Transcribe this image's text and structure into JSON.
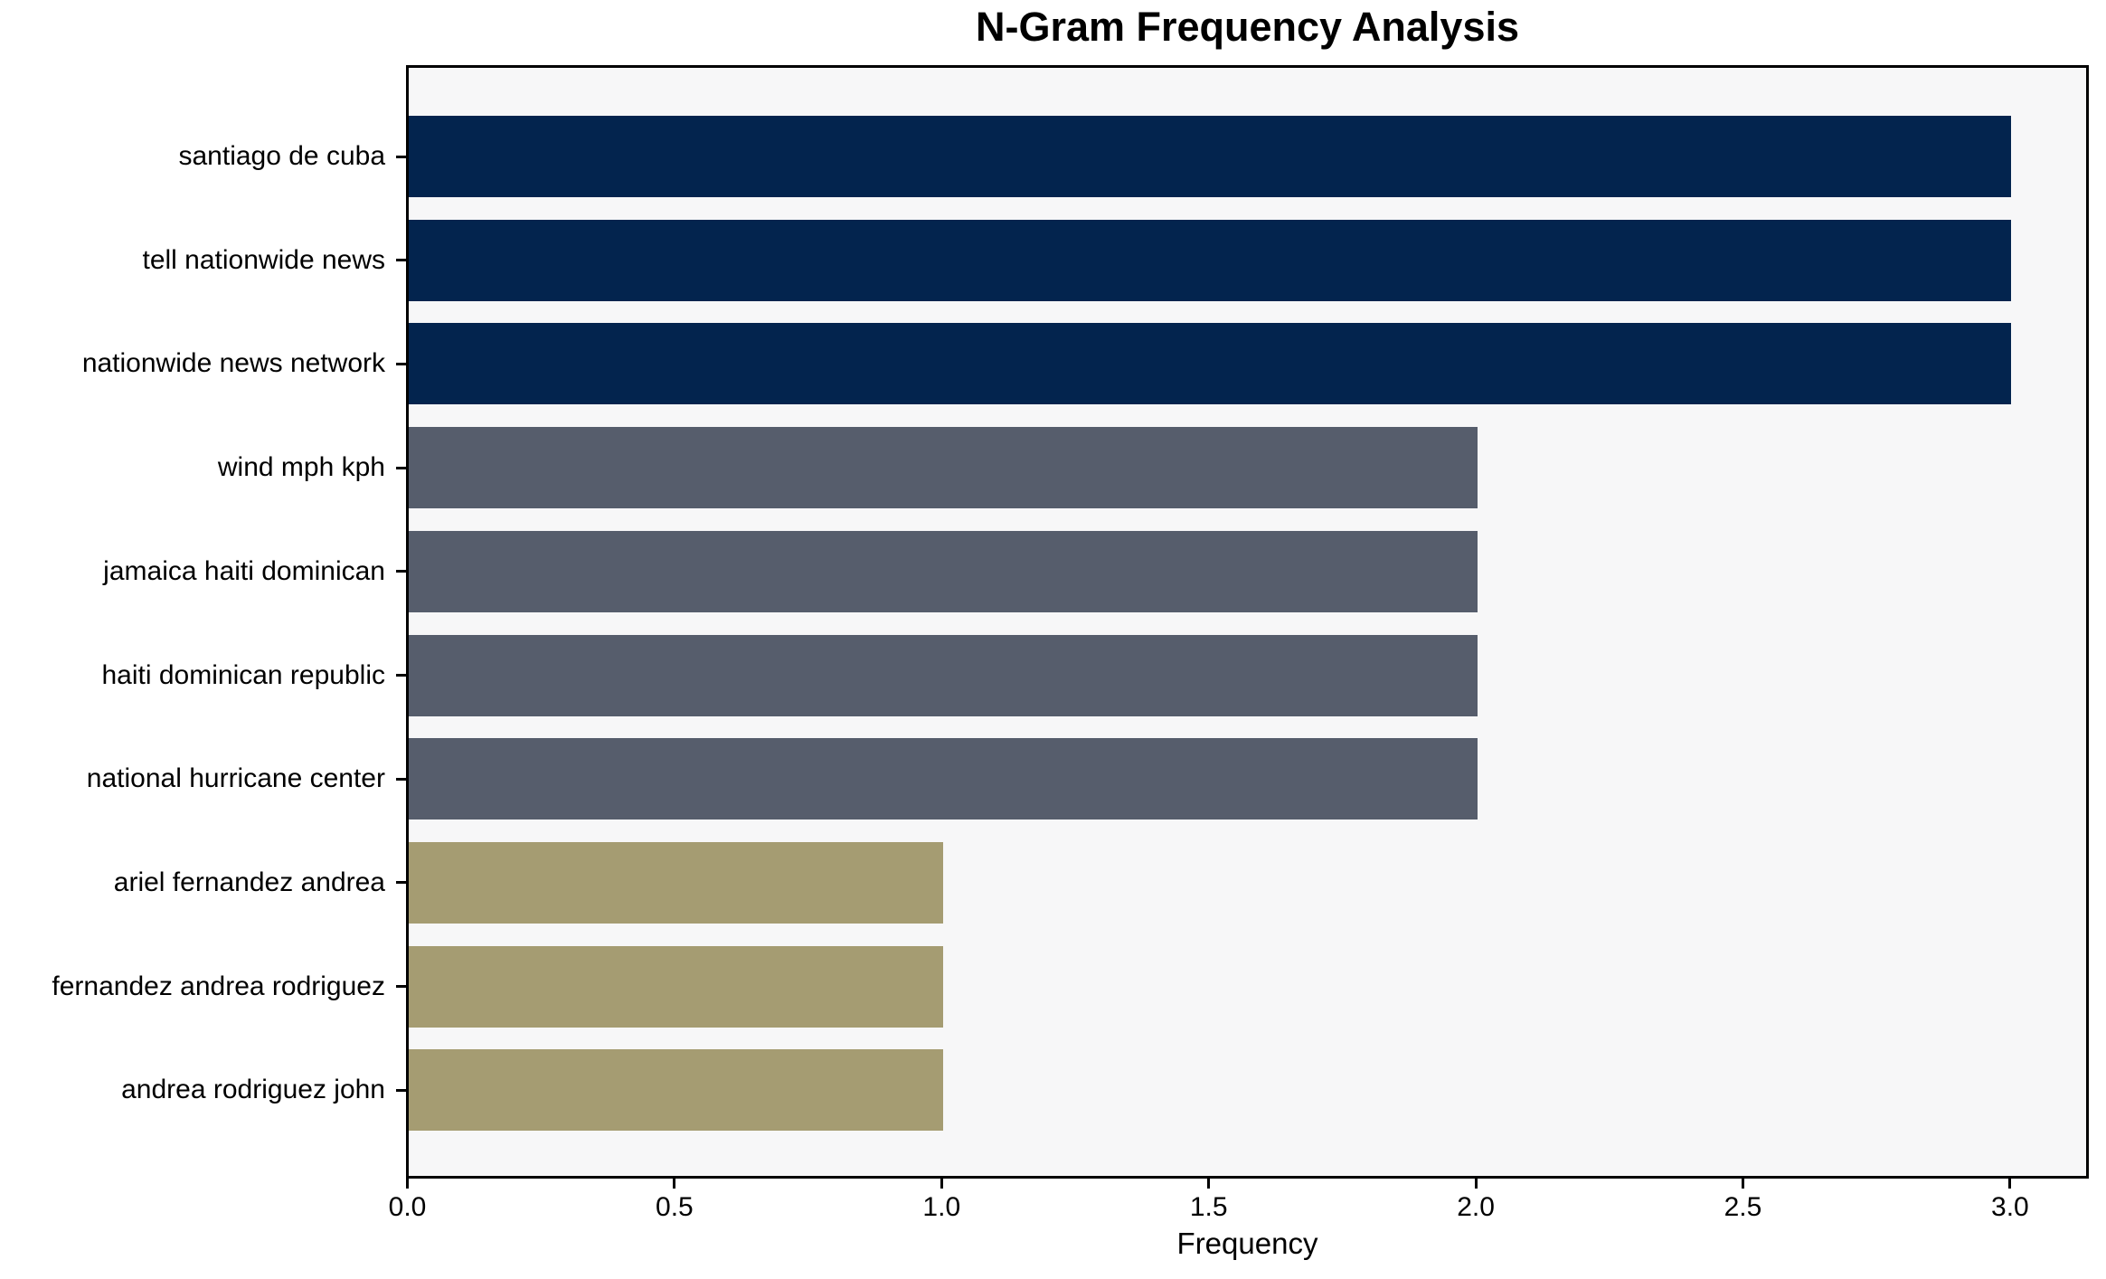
{
  "chart_data": {
    "type": "bar",
    "orientation": "horizontal",
    "title": "N-Gram Frequency Analysis",
    "xlabel": "Frequency",
    "ylabel": "",
    "categories": [
      "santiago de cuba",
      "tell nationwide news",
      "nationwide news network",
      "wind mph kph",
      "jamaica haiti dominican",
      "haiti dominican republic",
      "national hurricane center",
      "ariel fernandez andrea",
      "fernandez andrea rodriguez",
      "andrea rodriguez john"
    ],
    "values": [
      3,
      3,
      3,
      2,
      2,
      2,
      2,
      1,
      1,
      1
    ],
    "bar_colors": [
      "#03244e",
      "#03244e",
      "#03244e",
      "#565d6c",
      "#565d6c",
      "#565d6c",
      "#565d6c",
      "#a59c72",
      "#a59c72",
      "#a59c72"
    ],
    "xlim": [
      0,
      3.15
    ],
    "xticks": [
      0.0,
      0.5,
      1.0,
      1.5,
      2.0,
      2.5,
      3.0
    ],
    "xtick_labels": [
      "0.0",
      "0.5",
      "1.0",
      "1.5",
      "2.0",
      "2.5",
      "3.0"
    ],
    "grid": false,
    "legend": false,
    "plot_background": "#f7f7f8",
    "figure_background": "#ffffff",
    "text_color": "#000000",
    "spine_color": "#000000"
  }
}
